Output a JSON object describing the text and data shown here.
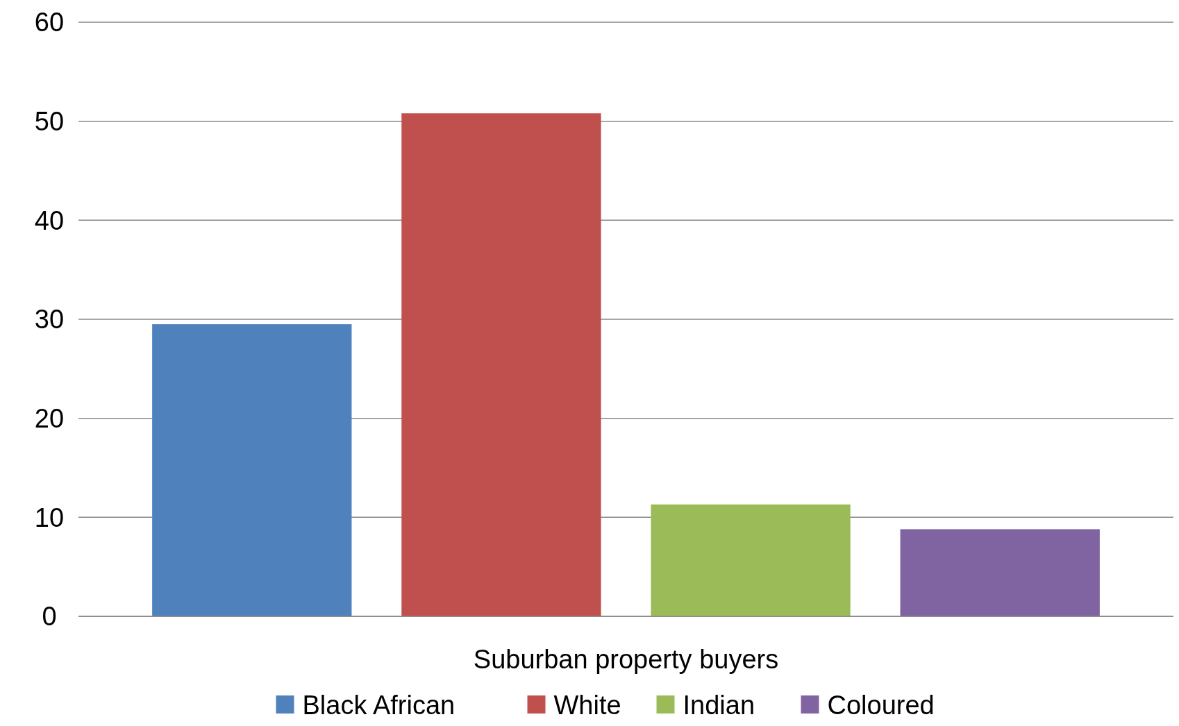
{
  "chart_data": {
    "type": "bar",
    "categories": [
      "Suburban property buyers"
    ],
    "series": [
      {
        "name": "Black African",
        "color": "#4f81bd",
        "values": [
          29.5
        ]
      },
      {
        "name": "White",
        "color": "#c0504d",
        "values": [
          50.8
        ]
      },
      {
        "name": "Indian",
        "color": "#9bbb59",
        "values": [
          11.3
        ]
      },
      {
        "name": "Coloured",
        "color": "#8064a2",
        "values": [
          8.8
        ]
      }
    ],
    "ylim": [
      0,
      60
    ],
    "yticks": [
      0,
      10,
      20,
      30,
      40,
      50,
      60
    ],
    "grid": "y",
    "legend": "bottom"
  }
}
